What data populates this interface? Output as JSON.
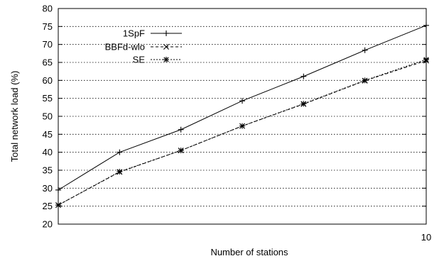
{
  "chart_data": {
    "type": "line",
    "xlabel": "Number of stations",
    "ylabel": "Total network load (%)",
    "xlim": [
      1,
      10
    ],
    "ylim": [
      20,
      80
    ],
    "yticks": [
      20,
      25,
      30,
      35,
      40,
      45,
      50,
      55,
      60,
      65,
      70,
      75,
      80
    ],
    "xticks": [
      10
    ],
    "xtick_labels": [
      "10"
    ],
    "grid": "horizontal dotted",
    "legend_position": "top-left",
    "x": [
      1,
      2.5,
      4,
      5.5,
      7,
      8.5,
      10
    ],
    "series": [
      {
        "name": "1SpF",
        "marker": "plus",
        "line": "solid",
        "values": [
          29.5,
          40.0,
          46.3,
          54.3,
          61.1,
          68.4,
          75.3
        ]
      },
      {
        "name": "BBFd-wlo",
        "marker": "cross",
        "line": "dashed",
        "values": [
          25.3,
          34.5,
          40.5,
          47.3,
          53.4,
          59.9,
          65.5
        ]
      },
      {
        "name": "SE",
        "marker": "star",
        "line": "dotted",
        "values": [
          25.3,
          34.6,
          40.5,
          47.3,
          53.5,
          60.0,
          65.8
        ]
      }
    ]
  }
}
